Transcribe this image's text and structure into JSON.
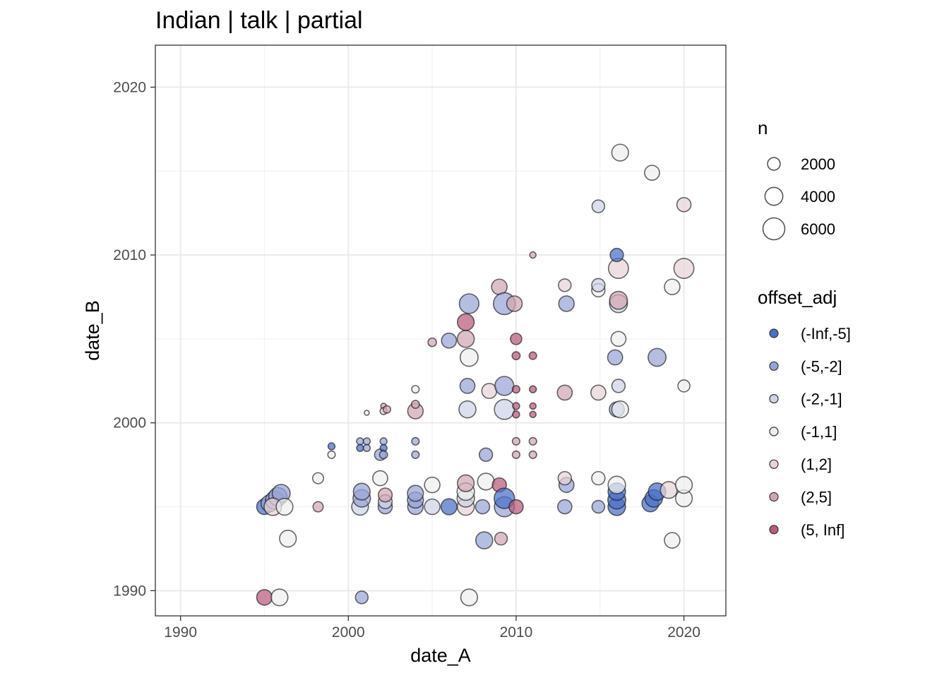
{
  "chart_data": {
    "type": "scatter",
    "title": "Indian | talk | partial",
    "xlabel": "date_A",
    "ylabel": "date_B",
    "xlim": [
      1988.5,
      2022.5
    ],
    "ylim": [
      1988.5,
      2022.5
    ],
    "x_ticks": [
      1990,
      2000,
      2010,
      2020
    ],
    "y_ticks": [
      1990,
      2000,
      2010,
      2020
    ],
    "x_tick_labels": [
      "1990",
      "2000",
      "2010",
      "2020"
    ],
    "y_tick_labels": [
      "1990",
      "2000",
      "2010",
      "2020"
    ],
    "grid": true,
    "legend_position": "right",
    "size_legend": {
      "title": "n",
      "entries": [
        {
          "label": "2000",
          "value": 2000
        },
        {
          "label": "4000",
          "value": 4000
        },
        {
          "label": "6000",
          "value": 6000
        }
      ]
    },
    "color_legend": {
      "title": "offset_adj",
      "entries": [
        {
          "label": "(-Inf,-5]",
          "color": "#4a6fc6"
        },
        {
          "label": "(-5,-2]",
          "color": "#98a4d6"
        },
        {
          "label": "(-2,-1]",
          "color": "#cfd3e6"
        },
        {
          "label": "(-1,1]",
          "color": "#eeeeee"
        },
        {
          "label": "(1,2]",
          "color": "#e8d3d7"
        },
        {
          "label": "(2,5]",
          "color": "#d3a6b1"
        },
        {
          "label": "(5, Inf]",
          "color": "#b85a7c"
        }
      ]
    },
    "points": [
      {
        "x": 1995.0,
        "y": 1995.0,
        "n": 3000,
        "group": "(-Inf,-5]"
      },
      {
        "x": 1995.3,
        "y": 1995.2,
        "n": 3500,
        "group": "(-5,-2]"
      },
      {
        "x": 1995.6,
        "y": 1995.4,
        "n": 4000,
        "group": "(-5,-2]"
      },
      {
        "x": 1995.8,
        "y": 1995.6,
        "n": 4200,
        "group": "(-5,-2]"
      },
      {
        "x": 1996.0,
        "y": 1995.8,
        "n": 4000,
        "group": "(-5,-2]"
      },
      {
        "x": 1995.5,
        "y": 1995.0,
        "n": 3800,
        "group": "(1,2]"
      },
      {
        "x": 1996.2,
        "y": 1995.0,
        "n": 3500,
        "group": "(-1,1]"
      },
      {
        "x": 1996.4,
        "y": 1993.1,
        "n": 3500,
        "group": "(-1,1]"
      },
      {
        "x": 1995.0,
        "y": 1989.6,
        "n": 3000,
        "group": "(5, Inf]"
      },
      {
        "x": 1995.9,
        "y": 1989.6,
        "n": 3500,
        "group": "(-1,1]"
      },
      {
        "x": 1998.2,
        "y": 1996.7,
        "n": 1500,
        "group": "(-1,1]"
      },
      {
        "x": 1998.2,
        "y": 1995.0,
        "n": 1300,
        "group": "(2,5]"
      },
      {
        "x": 1999.0,
        "y": 1998.6,
        "n": 600,
        "group": "(-Inf,-5]"
      },
      {
        "x": 1999.0,
        "y": 1998.1,
        "n": 700,
        "group": "(-1,1]"
      },
      {
        "x": 2000.7,
        "y": 1995.0,
        "n": 3500,
        "group": "(-2,-1]"
      },
      {
        "x": 2000.8,
        "y": 1995.5,
        "n": 3800,
        "group": "(-5,-2]"
      },
      {
        "x": 2000.8,
        "y": 1995.9,
        "n": 3500,
        "group": "(-5,-2]"
      },
      {
        "x": 2000.8,
        "y": 1989.6,
        "n": 2000,
        "group": "(-5,-2]"
      },
      {
        "x": 2000.7,
        "y": 1998.9,
        "n": 600,
        "group": "(-5,-2]"
      },
      {
        "x": 2001.1,
        "y": 1998.9,
        "n": 600,
        "group": "(-5,-2]"
      },
      {
        "x": 2000.7,
        "y": 1998.5,
        "n": 600,
        "group": "(-Inf,-5]"
      },
      {
        "x": 2001.1,
        "y": 1998.5,
        "n": 600,
        "group": "(-5,-2]"
      },
      {
        "x": 2001.1,
        "y": 2000.6,
        "n": 300,
        "group": "(-1,1]"
      },
      {
        "x": 2001.9,
        "y": 1996.7,
        "n": 2800,
        "group": "(-1,1]"
      },
      {
        "x": 2001.9,
        "y": 1998.1,
        "n": 1600,
        "group": "(-5,-2]"
      },
      {
        "x": 2002.1,
        "y": 1998.9,
        "n": 600,
        "group": "(-5,-2]"
      },
      {
        "x": 2002.1,
        "y": 1998.5,
        "n": 600,
        "group": "(-Inf,-5]"
      },
      {
        "x": 2002.1,
        "y": 1998.1,
        "n": 800,
        "group": "(-5,-2]"
      },
      {
        "x": 2002.1,
        "y": 2001.0,
        "n": 400,
        "group": "(2,5]"
      },
      {
        "x": 2002.1,
        "y": 2000.7,
        "n": 600,
        "group": "(1,2]"
      },
      {
        "x": 2002.3,
        "y": 2000.8,
        "n": 700,
        "group": "(2,5]"
      },
      {
        "x": 2002.2,
        "y": 1995.0,
        "n": 2500,
        "group": "(-5,-2]"
      },
      {
        "x": 2002.2,
        "y": 1995.3,
        "n": 2400,
        "group": "(-2,-1]"
      },
      {
        "x": 2002.2,
        "y": 1995.7,
        "n": 2400,
        "group": "(2,5]"
      },
      {
        "x": 2004.0,
        "y": 1995.0,
        "n": 3000,
        "group": "(-5,-2]"
      },
      {
        "x": 2004.0,
        "y": 1995.4,
        "n": 3200,
        "group": "(-5,-2]"
      },
      {
        "x": 2004.0,
        "y": 1995.8,
        "n": 3200,
        "group": "(-5,-2]"
      },
      {
        "x": 2004.0,
        "y": 2000.7,
        "n": 3000,
        "group": "(2,5]"
      },
      {
        "x": 2004.0,
        "y": 2001.1,
        "n": 800,
        "group": "(2,5]"
      },
      {
        "x": 2004.0,
        "y": 2002.0,
        "n": 700,
        "group": "(-1,1]"
      },
      {
        "x": 2004.0,
        "y": 1998.9,
        "n": 700,
        "group": "(-5,-2]"
      },
      {
        "x": 2004.0,
        "y": 1998.1,
        "n": 700,
        "group": "(-5,-2]"
      },
      {
        "x": 2005.0,
        "y": 1996.3,
        "n": 3000,
        "group": "(-1,1]"
      },
      {
        "x": 2005.0,
        "y": 1995.0,
        "n": 3000,
        "group": "(-2,-1]"
      },
      {
        "x": 2005.0,
        "y": 2004.8,
        "n": 900,
        "group": "(2,5]"
      },
      {
        "x": 2006.0,
        "y": 1995.0,
        "n": 3200,
        "group": "(-Inf,-5]"
      },
      {
        "x": 2006.0,
        "y": 2004.9,
        "n": 2800,
        "group": "(-5,-2]"
      },
      {
        "x": 2007.0,
        "y": 1995.0,
        "n": 3600,
        "group": "(1,2]"
      },
      {
        "x": 2007.0,
        "y": 1995.5,
        "n": 3800,
        "group": "(-2,-1]"
      },
      {
        "x": 2007.0,
        "y": 1995.9,
        "n": 3800,
        "group": "(-1,1]"
      },
      {
        "x": 2007.0,
        "y": 1996.4,
        "n": 3500,
        "group": "(2,5]"
      },
      {
        "x": 2007.2,
        "y": 1989.6,
        "n": 3500,
        "group": "(-1,1]"
      },
      {
        "x": 2007.1,
        "y": 2000.8,
        "n": 3600,
        "group": "(-2,-1]"
      },
      {
        "x": 2007.1,
        "y": 2002.2,
        "n": 2800,
        "group": "(-5,-2]"
      },
      {
        "x": 2007.2,
        "y": 2003.9,
        "n": 4000,
        "group": "(-1,1]"
      },
      {
        "x": 2007.0,
        "y": 2005.0,
        "n": 3600,
        "group": "(2,5]"
      },
      {
        "x": 2007.0,
        "y": 2006.0,
        "n": 3500,
        "group": "(5, Inf]"
      },
      {
        "x": 2007.2,
        "y": 2007.1,
        "n": 4800,
        "group": "(-5,-2]"
      },
      {
        "x": 2008.0,
        "y": 1995.0,
        "n": 2500,
        "group": "(-5,-2]"
      },
      {
        "x": 2008.2,
        "y": 1996.5,
        "n": 3500,
        "group": "(-1,1]"
      },
      {
        "x": 2008.1,
        "y": 1993.0,
        "n": 3600,
        "group": "(-5,-2]"
      },
      {
        "x": 2008.2,
        "y": 1998.1,
        "n": 2200,
        "group": "(-5,-2]"
      },
      {
        "x": 2008.4,
        "y": 2001.9,
        "n": 2800,
        "group": "(1,2]"
      },
      {
        "x": 2009.0,
        "y": 1996.3,
        "n": 2500,
        "group": "(5, Inf]"
      },
      {
        "x": 2009.1,
        "y": 1993.1,
        "n": 2000,
        "group": "(2,5]"
      },
      {
        "x": 2009.0,
        "y": 2008.1,
        "n": 3000,
        "group": "(2,5]"
      },
      {
        "x": 2009.3,
        "y": 1995.0,
        "n": 5000,
        "group": "(-5,-2]"
      },
      {
        "x": 2009.3,
        "y": 1995.5,
        "n": 5200,
        "group": "(-Inf,-5]"
      },
      {
        "x": 2009.3,
        "y": 2007.1,
        "n": 6000,
        "group": "(-5,-2]"
      },
      {
        "x": 2009.3,
        "y": 2002.2,
        "n": 4500,
        "group": "(-5,-2]"
      },
      {
        "x": 2009.3,
        "y": 2000.8,
        "n": 5000,
        "group": "(-2,-1]"
      },
      {
        "x": 2009.9,
        "y": 2007.1,
        "n": 3000,
        "group": "(2,5]"
      },
      {
        "x": 2010.0,
        "y": 1995.0,
        "n": 2500,
        "group": "(5, Inf]"
      },
      {
        "x": 2010.0,
        "y": 2005.0,
        "n": 1600,
        "group": "(5, Inf]"
      },
      {
        "x": 2010.0,
        "y": 2004.0,
        "n": 800,
        "group": "(5, Inf]"
      },
      {
        "x": 2010.0,
        "y": 2002.0,
        "n": 700,
        "group": "(5, Inf]"
      },
      {
        "x": 2010.0,
        "y": 2001.0,
        "n": 600,
        "group": "(5, Inf]"
      },
      {
        "x": 2010.0,
        "y": 2000.5,
        "n": 600,
        "group": "(5, Inf]"
      },
      {
        "x": 2010.0,
        "y": 1998.9,
        "n": 700,
        "group": "(2,5]"
      },
      {
        "x": 2010.0,
        "y": 1998.1,
        "n": 700,
        "group": "(2,5]"
      },
      {
        "x": 2011.0,
        "y": 2004.0,
        "n": 700,
        "group": "(5, Inf]"
      },
      {
        "x": 2011.0,
        "y": 2002.0,
        "n": 600,
        "group": "(5, Inf]"
      },
      {
        "x": 2011.0,
        "y": 2001.0,
        "n": 500,
        "group": "(5, Inf]"
      },
      {
        "x": 2011.0,
        "y": 2000.5,
        "n": 500,
        "group": "(5, Inf]"
      },
      {
        "x": 2011.0,
        "y": 1998.9,
        "n": 700,
        "group": "(2,5]"
      },
      {
        "x": 2011.0,
        "y": 1998.1,
        "n": 700,
        "group": "(2,5]"
      },
      {
        "x": 2011.0,
        "y": 2010.0,
        "n": 500,
        "group": "(2,5]"
      },
      {
        "x": 2012.9,
        "y": 1995.0,
        "n": 2500,
        "group": "(-5,-2]"
      },
      {
        "x": 2013.0,
        "y": 1996.3,
        "n": 2800,
        "group": "(-5,-2]"
      },
      {
        "x": 2012.9,
        "y": 1996.7,
        "n": 2200,
        "group": "(1,2]"
      },
      {
        "x": 2012.9,
        "y": 2001.8,
        "n": 2800,
        "group": "(2,5]"
      },
      {
        "x": 2013.0,
        "y": 2007.1,
        "n": 3000,
        "group": "(-5,-2]"
      },
      {
        "x": 2012.9,
        "y": 2008.2,
        "n": 2000,
        "group": "(1,2]"
      },
      {
        "x": 2014.9,
        "y": 1995.0,
        "n": 2000,
        "group": "(-5,-2]"
      },
      {
        "x": 2014.9,
        "y": 1996.7,
        "n": 2200,
        "group": "(-1,1]"
      },
      {
        "x": 2014.9,
        "y": 2001.8,
        "n": 2800,
        "group": "(1,2]"
      },
      {
        "x": 2014.9,
        "y": 2007.9,
        "n": 2200,
        "group": "(-1,1]"
      },
      {
        "x": 2014.9,
        "y": 2008.2,
        "n": 2200,
        "group": "(-2,-1]"
      },
      {
        "x": 2014.9,
        "y": 2012.9,
        "n": 2000,
        "group": "(-2,-1]"
      },
      {
        "x": 2016.0,
        "y": 1995.0,
        "n": 3800,
        "group": "(-Inf,-5]"
      },
      {
        "x": 2016.0,
        "y": 1995.4,
        "n": 4000,
        "group": "(-Inf,-5]"
      },
      {
        "x": 2016.0,
        "y": 1995.9,
        "n": 3800,
        "group": "(-Inf,-5]"
      },
      {
        "x": 2016.0,
        "y": 1996.3,
        "n": 3800,
        "group": "(-1,1]"
      },
      {
        "x": 2016.0,
        "y": 2000.8,
        "n": 2800,
        "group": "(-5,-2]"
      },
      {
        "x": 2016.2,
        "y": 2000.8,
        "n": 3500,
        "group": "(-1,1]"
      },
      {
        "x": 2016.1,
        "y": 2002.2,
        "n": 2200,
        "group": "(-2,-1]"
      },
      {
        "x": 2015.9,
        "y": 2003.9,
        "n": 2800,
        "group": "(-5,-2]"
      },
      {
        "x": 2016.1,
        "y": 2005.0,
        "n": 2800,
        "group": "(-1,1]"
      },
      {
        "x": 2016.1,
        "y": 2007.1,
        "n": 4000,
        "group": "(-2,-1]"
      },
      {
        "x": 2016.1,
        "y": 2007.3,
        "n": 4000,
        "group": "(2,5]"
      },
      {
        "x": 2016.1,
        "y": 2009.2,
        "n": 5000,
        "group": "(1,2]"
      },
      {
        "x": 2016.0,
        "y": 2010.0,
        "n": 2200,
        "group": "(-Inf,-5]"
      },
      {
        "x": 2016.2,
        "y": 2016.1,
        "n": 3500,
        "group": "(-1,1]"
      },
      {
        "x": 2018.1,
        "y": 2014.9,
        "n": 2800,
        "group": "(-1,1]"
      },
      {
        "x": 2018.0,
        "y": 1995.2,
        "n": 3500,
        "group": "(-Inf,-5]"
      },
      {
        "x": 2018.2,
        "y": 1995.5,
        "n": 3800,
        "group": "(-Inf,-5]"
      },
      {
        "x": 2018.4,
        "y": 1995.9,
        "n": 3800,
        "group": "(-Inf,-5]"
      },
      {
        "x": 2018.4,
        "y": 2003.9,
        "n": 4000,
        "group": "(-5,-2]"
      },
      {
        "x": 2019.1,
        "y": 1996.0,
        "n": 3500,
        "group": "(1,2]"
      },
      {
        "x": 2019.3,
        "y": 1993.0,
        "n": 3000,
        "group": "(-1,1]"
      },
      {
        "x": 2019.3,
        "y": 2008.1,
        "n": 3000,
        "group": "(-1,1]"
      },
      {
        "x": 2020.0,
        "y": 1995.5,
        "n": 3500,
        "group": "(-1,1]"
      },
      {
        "x": 2020.0,
        "y": 1996.3,
        "n": 3500,
        "group": "(-1,1]"
      },
      {
        "x": 2020.0,
        "y": 2002.2,
        "n": 1800,
        "group": "(-1,1]"
      },
      {
        "x": 2020.0,
        "y": 2009.2,
        "n": 5000,
        "group": "(1,2]"
      },
      {
        "x": 2020.0,
        "y": 2013.0,
        "n": 2500,
        "group": "(1,2]"
      }
    ]
  }
}
